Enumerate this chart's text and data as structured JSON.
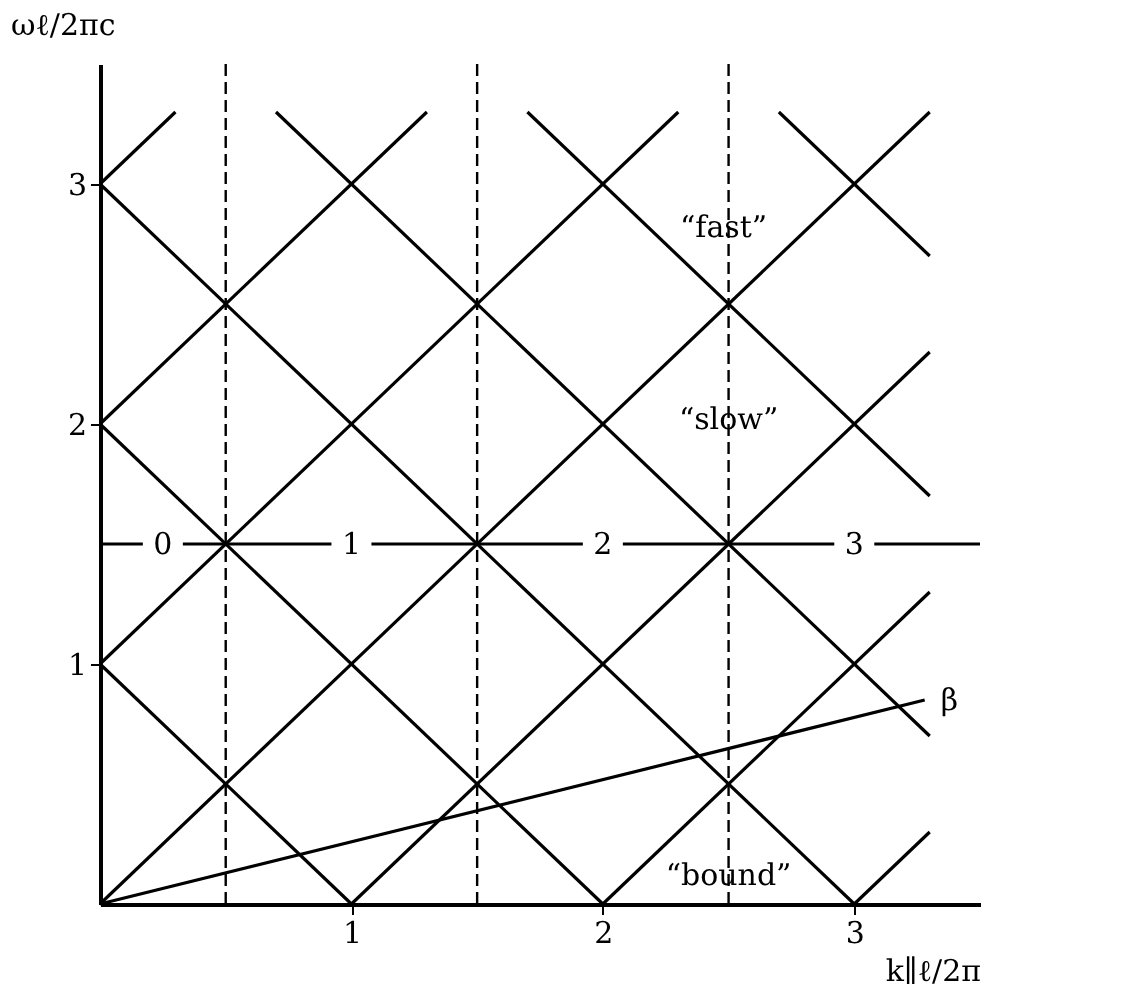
{
  "chart_data": {
    "type": "line",
    "xlabel": "k∥ℓ/2π",
    "ylabel": "ωℓ/2πc",
    "xlim": [
      0,
      3.5
    ],
    "ylim": [
      0,
      3.5
    ],
    "xticks": [
      1,
      2,
      3
    ],
    "yticks": [
      1,
      2,
      3
    ],
    "grid": false,
    "marker": "none",
    "line_style": "solid",
    "series": [
      {
        "color": "#000000",
        "x": [
          0,
          0.3
        ],
        "values": [
          3,
          3.3
        ]
      },
      {
        "color": "#000000",
        "x": [
          0,
          1.3
        ],
        "values": [
          2,
          3.3
        ]
      },
      {
        "color": "#000000",
        "x": [
          0,
          2.3
        ],
        "values": [
          1,
          3.3
        ]
      },
      {
        "color": "#000000",
        "x": [
          0,
          3.3
        ],
        "values": [
          0,
          3.3
        ]
      },
      {
        "color": "#000000",
        "x": [
          1,
          3.3
        ],
        "values": [
          0,
          2.3
        ]
      },
      {
        "color": "#000000",
        "x": [
          2,
          3.3
        ],
        "values": [
          0,
          1.3
        ]
      },
      {
        "color": "#000000",
        "x": [
          3,
          3.3
        ],
        "values": [
          0,
          0.3
        ]
      },
      {
        "color": "#000000",
        "x": [
          0,
          1
        ],
        "values": [
          1,
          0
        ]
      },
      {
        "color": "#000000",
        "x": [
          0,
          2
        ],
        "values": [
          2,
          0
        ]
      },
      {
        "color": "#000000",
        "x": [
          0,
          3
        ],
        "values": [
          3,
          0
        ]
      },
      {
        "color": "#000000",
        "x": [
          0.7,
          3.3
        ],
        "values": [
          3.3,
          0.7
        ]
      },
      {
        "color": "#000000",
        "x": [
          1.7,
          3.3
        ],
        "values": [
          3.3,
          1.7
        ]
      },
      {
        "color": "#000000",
        "x": [
          2.7,
          3.3
        ],
        "values": [
          3.3,
          2.7
        ]
      },
      {
        "name": "β",
        "color": "#000000",
        "x": [
          0,
          3.28
        ],
        "values": [
          0,
          0.85
        ]
      }
    ],
    "ref_lines": [
      {
        "axis": "x",
        "value": 0.5,
        "label": null,
        "line_style": "dashed"
      },
      {
        "axis": "x",
        "value": 1.5,
        "label": null,
        "line_style": "dashed"
      },
      {
        "axis": "x",
        "value": 2.5,
        "label": null,
        "line_style": "dashed"
      },
      {
        "axis": "y",
        "value": 1.5,
        "label": null,
        "line_style": "solid"
      }
    ],
    "annotations": [
      {
        "text": "0",
        "x": 0.25,
        "y": 1.5
      },
      {
        "text": "1",
        "x": 1,
        "y": 1.5
      },
      {
        "text": "2",
        "x": 2,
        "y": 1.5
      },
      {
        "text": "3",
        "x": 3,
        "y": 1.5
      },
      {
        "text": "“fast”",
        "x": 2.48,
        "y": 2.82
      },
      {
        "text": "“slow”",
        "x": 2.5,
        "y": 2.02
      },
      {
        "text": "“bound”",
        "x": 2.5,
        "y": 0.12
      }
    ]
  }
}
